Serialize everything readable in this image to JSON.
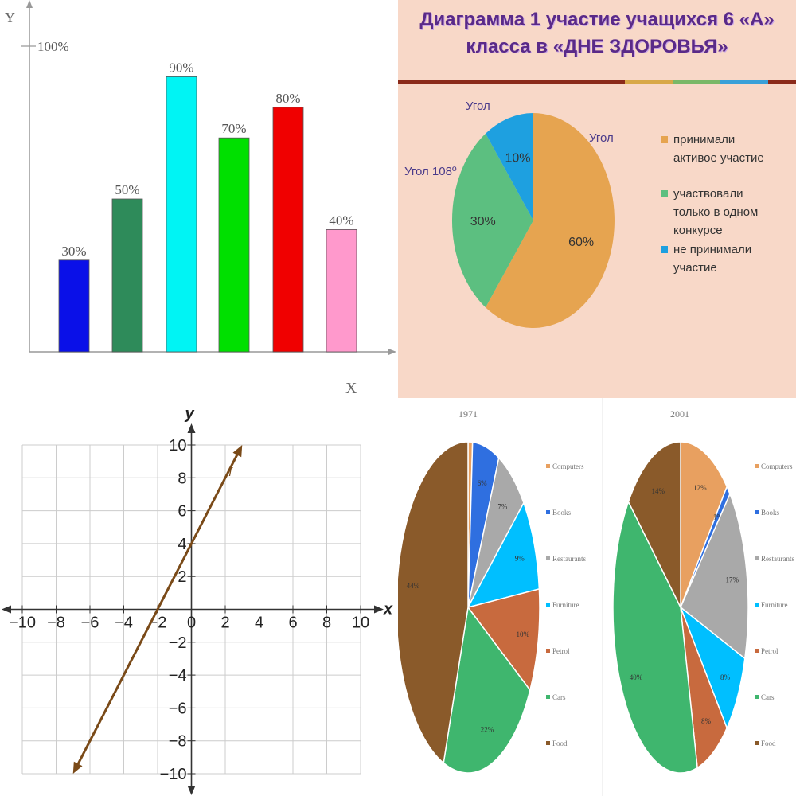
{
  "chart_data": [
    {
      "type": "bar",
      "title": "",
      "xlabel": "X",
      "ylabel": "Y",
      "ylim": [
        0,
        100
      ],
      "y_tick_labels": [
        "100%"
      ],
      "grid": false,
      "values": [
        30,
        50,
        90,
        70,
        80,
        40
      ],
      "value_labels": [
        "30%",
        "50%",
        "90%",
        "70%",
        "80%",
        "40%"
      ],
      "colors": [
        "#0a10e8",
        "#2e8b5a",
        "#00f4f4",
        "#00e000",
        "#f00000",
        "#ff99cc"
      ]
    },
    {
      "type": "pie",
      "title_line1": "Диаграмма 1 участие учащихся 6 «А»",
      "title_line2": "класса  в «ДНЕ ЗДОРОВЬЯ»",
      "slices": [
        {
          "value": 60,
          "label": "60%",
          "color": "#e6a450"
        },
        {
          "value": 30,
          "label": "30%",
          "color": "#5cbf80"
        },
        {
          "value": 10,
          "label": "10%",
          "color": "#1ea0e0"
        }
      ],
      "annotations": [
        "Угол",
        "Угол",
        "Угол 108º"
      ],
      "legend_placement": "right",
      "legend": [
        {
          "lines": [
            "принимали",
            "активое участие"
          ],
          "color": "#e6a450"
        },
        {
          "lines": [
            "участвовали",
            "только в одном",
            "конкурсе"
          ],
          "color": "#5cbf80"
        },
        {
          "lines": [
            "не принимали",
            "участие"
          ],
          "color": "#1ea0e0"
        }
      ]
    },
    {
      "type": "line",
      "xlabel": "x",
      "ylabel": "y",
      "xlim": [
        -10,
        10
      ],
      "ylim": [
        -10,
        10
      ],
      "grid": true,
      "x_ticks": [
        -10,
        -8,
        -6,
        -4,
        -2,
        0,
        2,
        4,
        6,
        8,
        10
      ],
      "y_ticks": [
        -10,
        -8,
        -6,
        -4,
        -2,
        2,
        4,
        6,
        8,
        10
      ],
      "series": [
        {
          "name": "f",
          "points": [
            [
              -7,
              -10
            ],
            [
              3,
              10
            ]
          ],
          "color": "#7a4a18"
        }
      ]
    },
    {
      "type": "pie",
      "title": "1971",
      "slices": [
        {
          "value": 1,
          "label": "",
          "color": "#e8a060"
        },
        {
          "value": 6,
          "label": "6%",
          "color": "#2f6fe0"
        },
        {
          "value": 7,
          "label": "7%",
          "color": "#a9a9a9"
        },
        {
          "value": 9,
          "label": "9%",
          "color": "#00bfff"
        },
        {
          "value": 10,
          "label": "10%",
          "color": "#c86a3e"
        },
        {
          "value": 22,
          "label": "22%",
          "color": "#3fb66e"
        },
        {
          "value": 44,
          "label": "44%",
          "color": "#8a5a2a"
        }
      ],
      "legend_placement": "right",
      "legend": [
        "Computers",
        "Books",
        "Restaurants",
        "Furniture",
        "Petrol",
        "Cars",
        "Food"
      ]
    },
    {
      "type": "pie",
      "title": "2001",
      "slices": [
        {
          "value": 12,
          "label": "12%",
          "color": "#e8a060"
        },
        {
          "value": 1,
          "label": "1%",
          "color": "#2f6fe0"
        },
        {
          "value": 17,
          "label": "17%",
          "color": "#a9a9a9"
        },
        {
          "value": 8,
          "label": "8%",
          "color": "#00bfff"
        },
        {
          "value": 8,
          "label": "8%",
          "color": "#c86a3e"
        },
        {
          "value": 40,
          "label": "40%",
          "color": "#3fb66e"
        },
        {
          "value": 14,
          "label": "14%",
          "color": "#8a5a2a"
        }
      ],
      "legend_placement": "right",
      "legend": [
        "Computers",
        "Books",
        "Restaurants",
        "Furniture",
        "Petrol",
        "Cars",
        "Food"
      ]
    }
  ]
}
